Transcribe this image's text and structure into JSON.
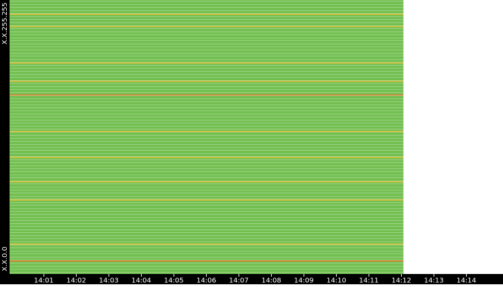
{
  "chart_data": {
    "type": "heatmap",
    "title": "",
    "x": {
      "tick_labels": [
        "14:01",
        "14:02",
        "14:03",
        "14:04",
        "14:05",
        "14:06",
        "14:07",
        "14:08",
        "14:09",
        "14:10",
        "14:11",
        "14:12",
        "14:13",
        "14:14"
      ],
      "range": [
        "14:00",
        "14:14"
      ],
      "data_end": "14:12"
    },
    "y": {
      "labels": {
        "top": "X.X.255.255",
        "bottom": "X.X.0.0"
      },
      "range": [
        "X.X.0.0",
        "X.X.255.255"
      ],
      "rows": 180
    },
    "row_intensity": {
      "encoding": "0 = none, 1 = low (green), 2 = medium (yellow/orange), 3 = high (red-orange)",
      "values": [
        1,
        1,
        1,
        1,
        1,
        1,
        1,
        1,
        1,
        2,
        1,
        1,
        1,
        1,
        1,
        1,
        1,
        2,
        1,
        1,
        1,
        1,
        1,
        1,
        1,
        1,
        1,
        1,
        1,
        1,
        1,
        1,
        1,
        1,
        1,
        1,
        1,
        1,
        1,
        1,
        1,
        2,
        1,
        1,
        1,
        1,
        1,
        1,
        1,
        1,
        1,
        1,
        1,
        2,
        1,
        1,
        1,
        1,
        1,
        1,
        1,
        1,
        3,
        1,
        1,
        1,
        1,
        1,
        1,
        1,
        1,
        1,
        1,
        1,
        1,
        1,
        1,
        1,
        1,
        1,
        1,
        1,
        1,
        1,
        1,
        1,
        2,
        1,
        1,
        1,
        1,
        1,
        1,
        1,
        1,
        1,
        1,
        1,
        1,
        1,
        1,
        1,
        1,
        2,
        1,
        1,
        1,
        1,
        1,
        1,
        1,
        1,
        1,
        1,
        1,
        1,
        1,
        1,
        1,
        2,
        1,
        1,
        1,
        1,
        1,
        1,
        1,
        1,
        1,
        1,
        1,
        2,
        1,
        1,
        1,
        1,
        1,
        1,
        1,
        1,
        1,
        1,
        1,
        1,
        1,
        1,
        1,
        1,
        1,
        1,
        1,
        1,
        1,
        1,
        1,
        1,
        1,
        1,
        1,
        1,
        2,
        1,
        1,
        1,
        1,
        1,
        1,
        1,
        1,
        1,
        1,
        3,
        1,
        1,
        1,
        1,
        1,
        1,
        1,
        1
      ]
    },
    "colors": {
      "background": "#ffffff",
      "axis_band": "#000000",
      "axis_text": "#ffffff",
      "low": "#7cc35a",
      "low_alt": "#5fb83e",
      "medium": "#d8c03a",
      "high": "#e07a28"
    },
    "grid": false,
    "legend": "none"
  }
}
